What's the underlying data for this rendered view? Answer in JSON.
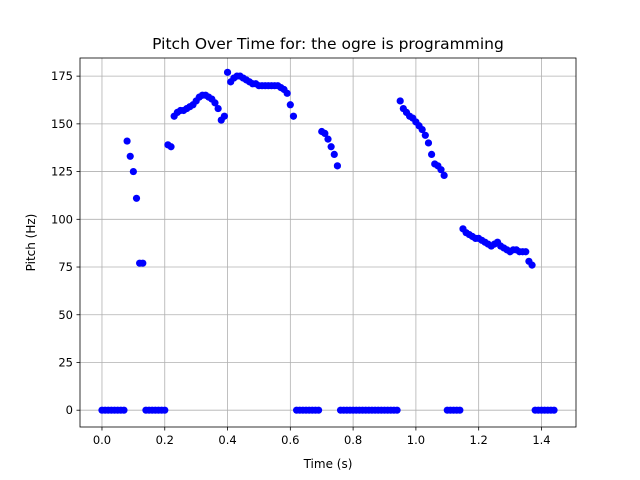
{
  "chart_data": {
    "type": "scatter",
    "title": "Pitch Over Time for: the ogre is programming",
    "xlabel": "Time (s)",
    "ylabel": "Pitch (Hz)",
    "xlim": [
      -0.07,
      1.51
    ],
    "ylim": [
      -8.8,
      184.5
    ],
    "xticks": [
      0.0,
      0.2,
      0.4,
      0.6,
      0.8,
      1.0,
      1.2,
      1.4
    ],
    "xtick_labels": [
      "0.0",
      "0.2",
      "0.4",
      "0.6",
      "0.8",
      "1.0",
      "1.2",
      "1.4"
    ],
    "yticks": [
      0,
      25,
      50,
      75,
      100,
      125,
      150,
      175
    ],
    "ytick_labels": [
      "0",
      "25",
      "50",
      "75",
      "100",
      "125",
      "150",
      "175"
    ],
    "grid": true,
    "marker_color": "#0000ff",
    "series": [
      {
        "x": [
          0.0,
          0.01,
          0.02,
          0.03,
          0.04,
          0.05,
          0.06,
          0.07,
          0.08,
          0.09,
          0.1,
          0.11,
          0.12,
          0.13,
          0.14,
          0.15,
          0.16,
          0.17,
          0.18,
          0.19,
          0.2,
          0.21,
          0.22,
          0.23,
          0.24,
          0.25,
          0.26,
          0.27,
          0.28,
          0.29,
          0.3,
          0.31,
          0.32,
          0.33,
          0.34,
          0.35,
          0.36,
          0.37,
          0.38,
          0.39,
          0.4,
          0.41,
          0.42,
          0.43,
          0.44,
          0.45,
          0.46,
          0.47,
          0.48,
          0.49,
          0.5,
          0.51,
          0.52,
          0.53,
          0.54,
          0.55,
          0.56,
          0.57,
          0.58,
          0.59,
          0.6,
          0.61,
          0.62,
          0.63,
          0.64,
          0.65,
          0.66,
          0.67,
          0.68,
          0.69,
          0.7,
          0.71,
          0.72,
          0.73,
          0.74,
          0.75,
          0.76,
          0.77,
          0.78,
          0.79,
          0.8,
          0.81,
          0.82,
          0.83,
          0.84,
          0.85,
          0.86,
          0.87,
          0.88,
          0.89,
          0.9,
          0.91,
          0.92,
          0.93,
          0.94,
          0.95,
          0.96,
          0.97,
          0.98,
          0.99,
          1.0,
          1.01,
          1.02,
          1.03,
          1.04,
          1.05,
          1.06,
          1.07,
          1.08,
          1.09,
          1.1,
          1.11,
          1.12,
          1.13,
          1.14,
          1.15,
          1.16,
          1.17,
          1.18,
          1.19,
          1.2,
          1.21,
          1.22,
          1.23,
          1.24,
          1.25,
          1.26,
          1.27,
          1.28,
          1.29,
          1.3,
          1.31,
          1.32,
          1.33,
          1.34,
          1.35,
          1.36,
          1.37,
          1.38,
          1.39,
          1.4,
          1.41,
          1.42,
          1.43,
          1.44
        ],
        "y": [
          0,
          0,
          0,
          0,
          0,
          0,
          0,
          0,
          141,
          133,
          125,
          111,
          77,
          77,
          0,
          0,
          0,
          0,
          0,
          0,
          0,
          139,
          138,
          154,
          156,
          157,
          157,
          158,
          159,
          160,
          162,
          164,
          165,
          165,
          164,
          163,
          161,
          158,
          152,
          154,
          177,
          172,
          174,
          175,
          175,
          174,
          173,
          172,
          171,
          171,
          170,
          170,
          170,
          170,
          170,
          170,
          170,
          169,
          168,
          166,
          160,
          154,
          0,
          0,
          0,
          0,
          0,
          0,
          0,
          0,
          146,
          145,
          142,
          138,
          134,
          128,
          0,
          0,
          0,
          0,
          0,
          0,
          0,
          0,
          0,
          0,
          0,
          0,
          0,
          0,
          0,
          0,
          0,
          0,
          0,
          162,
          158,
          156,
          154,
          153,
          151,
          149,
          147,
          144,
          140,
          134,
          129,
          128,
          126,
          123,
          0,
          0,
          0,
          0,
          0,
          95,
          93,
          92,
          91,
          90,
          90,
          89,
          88,
          87,
          86,
          87,
          88,
          86,
          85,
          84,
          83,
          84,
          84,
          83,
          83,
          83,
          78,
          76,
          0,
          0,
          0,
          0,
          0,
          0,
          0
        ]
      }
    ]
  }
}
